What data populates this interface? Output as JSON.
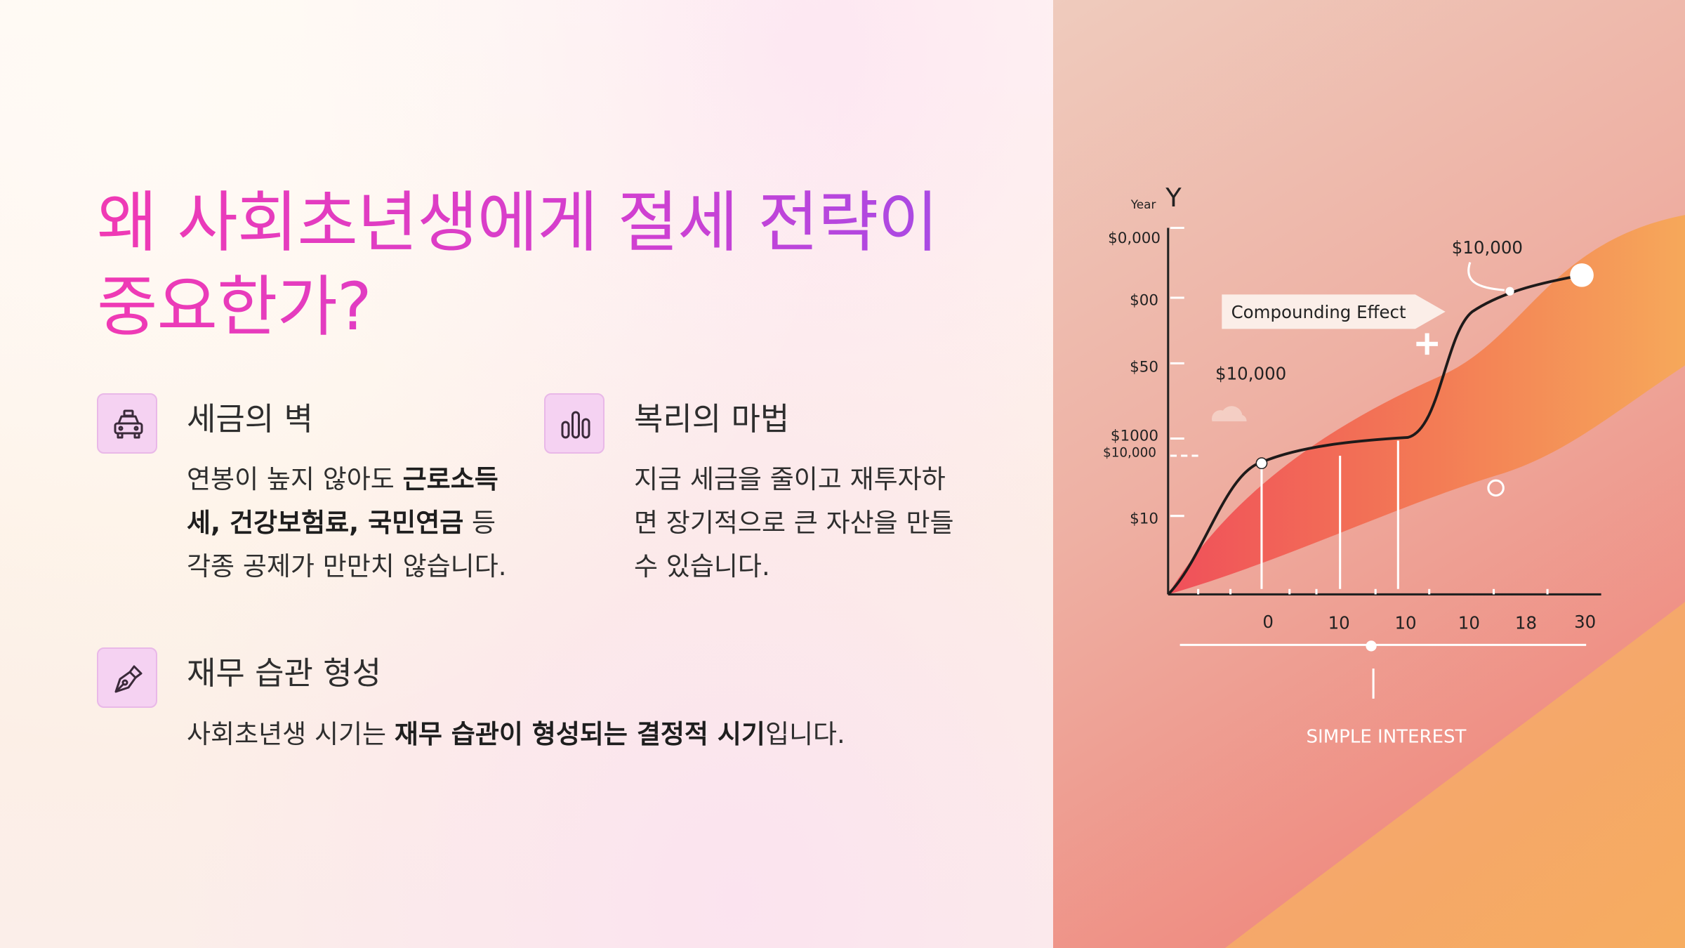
{
  "title": "왜 사회초년생에게 절세 전략이 중요한가?",
  "items": [
    {
      "heading": "세금의 벽",
      "runs": [
        {
          "text": "연봉이 높지 않아도 "
        },
        {
          "text": "근로소득세, 건강보험료, 국민연금",
          "strong": true
        },
        {
          "text": " 등 각종 공제가 만만치 않습니다."
        }
      ]
    },
    {
      "heading": "복리의 마법",
      "runs": [
        {
          "text": "지금 세금을 줄이고 재투자하면 장기적으로 큰 자산을 만들 수 있습니다."
        }
      ]
    },
    {
      "heading": "재무 습관 형성",
      "runs": [
        {
          "text": "사회초년생 시기는 "
        },
        {
          "text": "재무 습관이 형성되는 결정적 시기",
          "strong": true
        },
        {
          "text": "입니다."
        }
      ]
    }
  ],
  "illustration": {
    "axis_caption": "Year",
    "axis_letter": "Y",
    "y_labels": [
      "$0,000",
      "$00",
      "$50",
      "$1000",
      "$10,000",
      "$10"
    ],
    "x_labels": [
      "0",
      "10",
      "10",
      "10",
      "18",
      "30"
    ],
    "peak_label": "$10,000",
    "callout": "Compounding Effect",
    "mid_label": "$10,000",
    "footer_label": "SIMPLE INTEREST"
  }
}
